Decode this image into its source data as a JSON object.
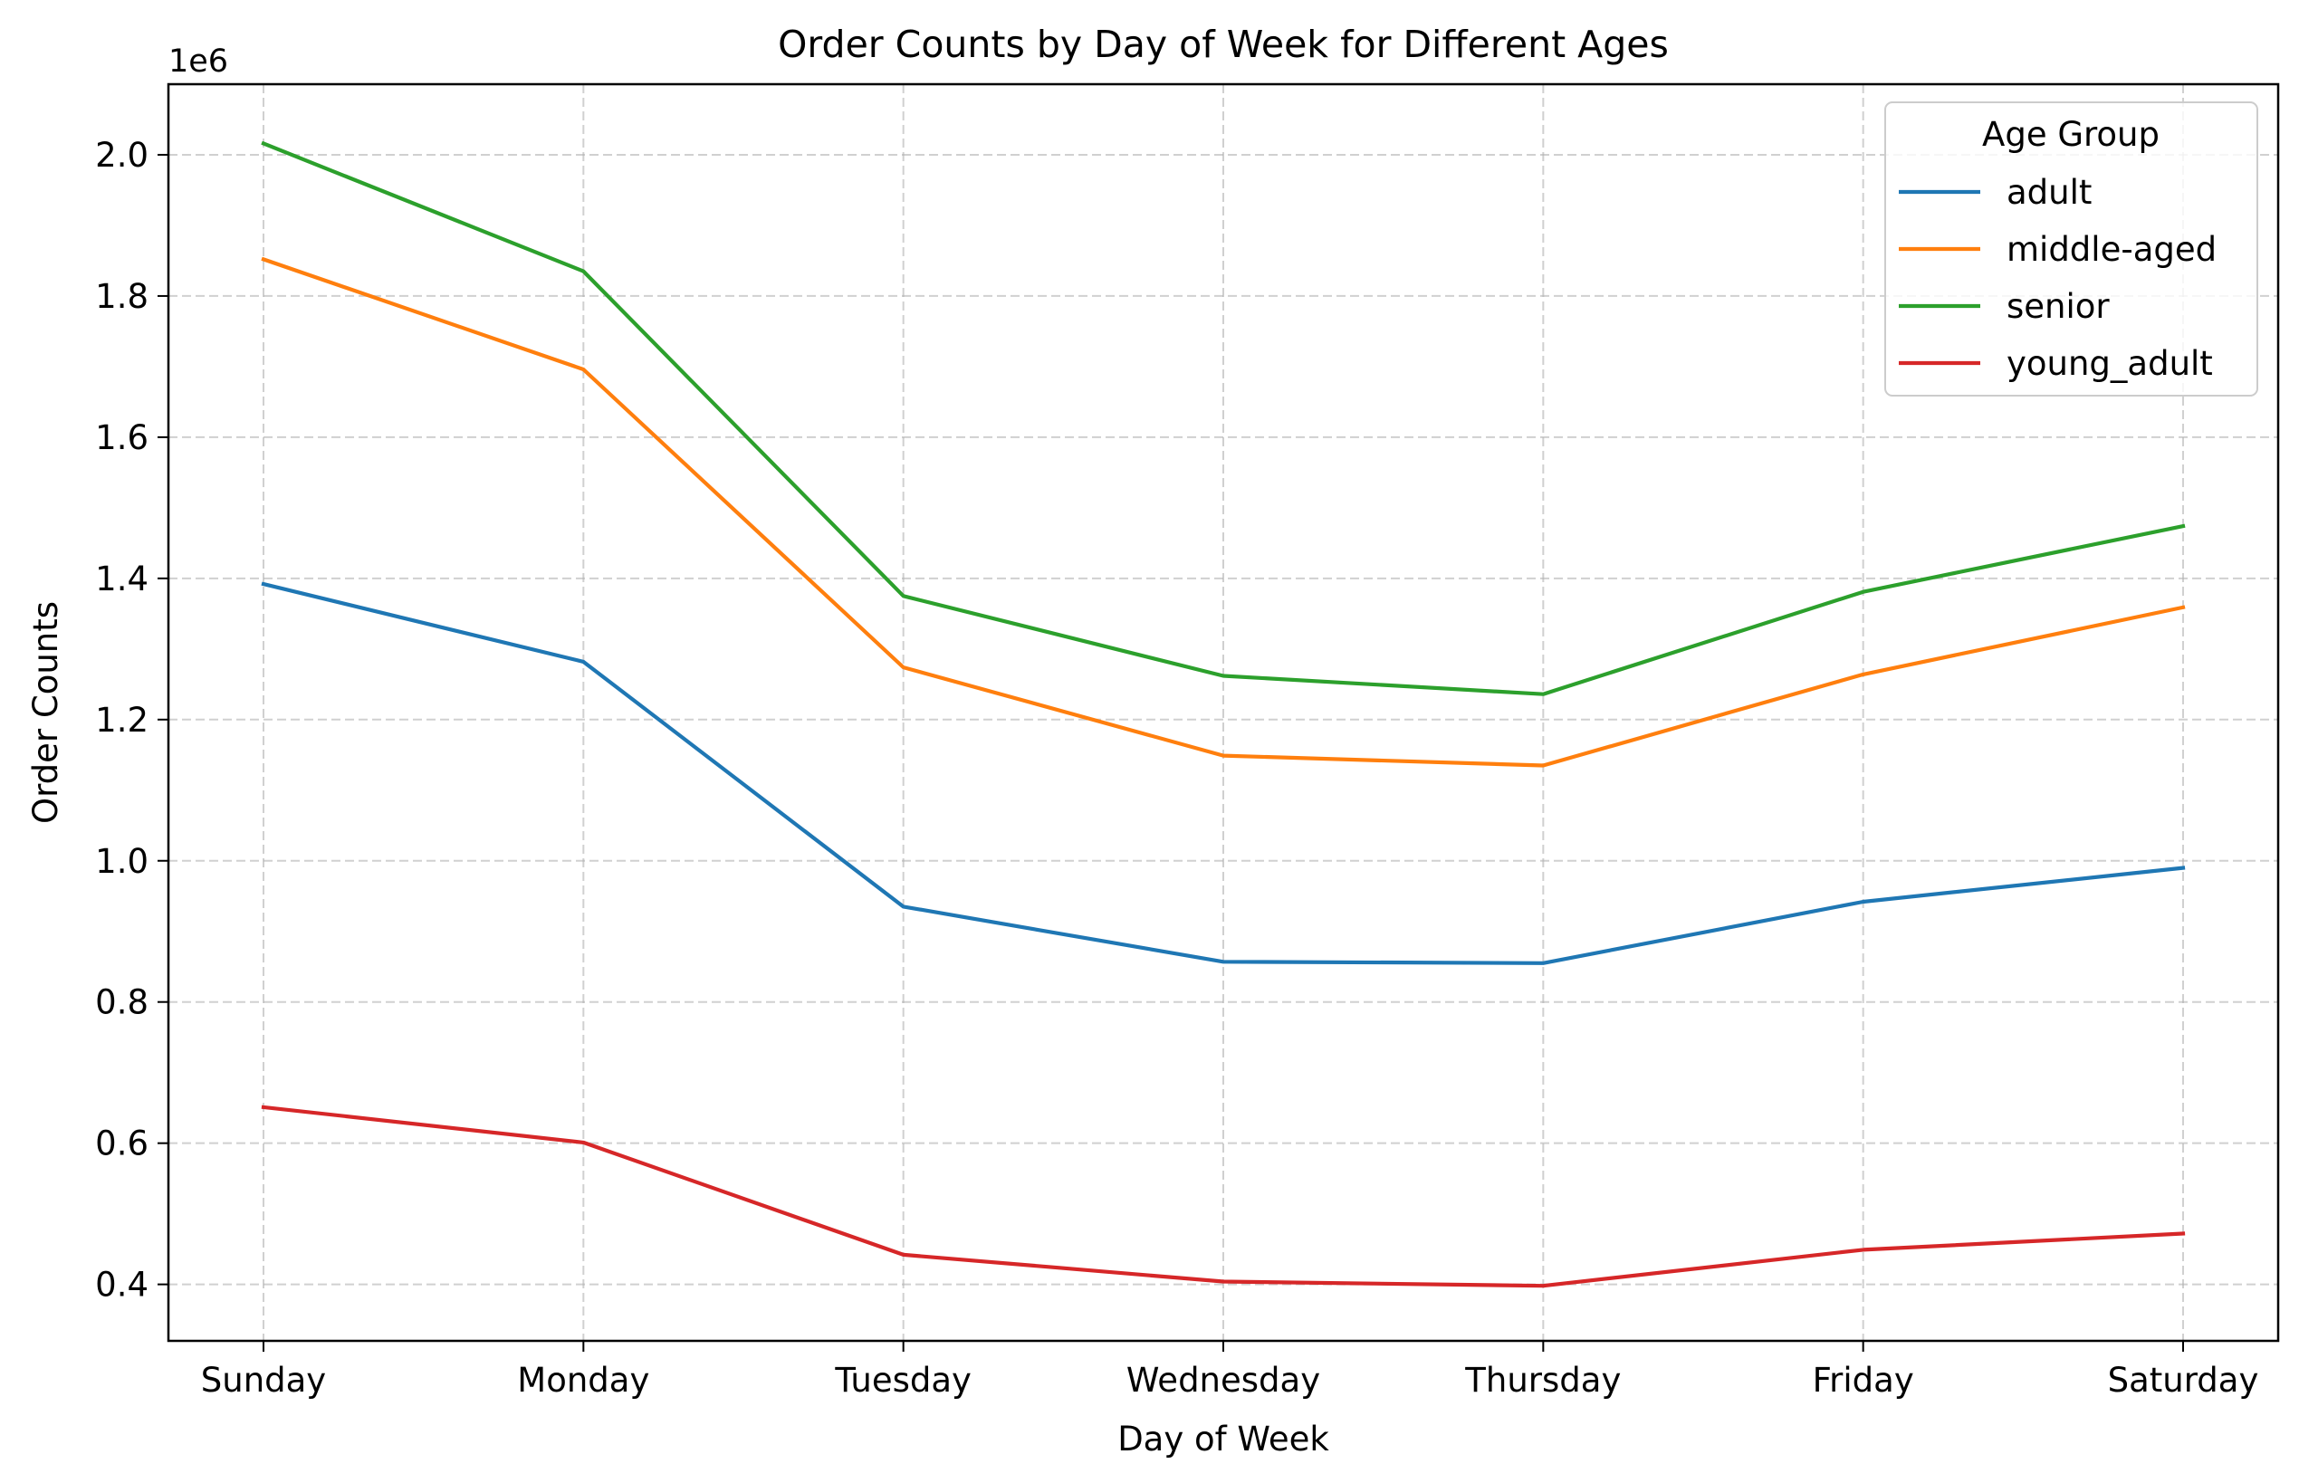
{
  "chart_data": {
    "type": "line",
    "title": "Order Counts by Day of Week for Different Ages",
    "xlabel": "Day of Week",
    "ylabel": "Order Counts",
    "y_offset_label": "1e6",
    "categories": [
      "Sunday",
      "Monday",
      "Tuesday",
      "Wednesday",
      "Thursday",
      "Friday",
      "Saturday"
    ],
    "y_ticks": [
      0.4,
      0.6,
      0.8,
      1.0,
      1.2,
      1.4,
      1.6,
      1.8,
      2.0
    ],
    "y_tick_labels": [
      "0.4",
      "0.6",
      "0.8",
      "1.0",
      "1.2",
      "1.4",
      "1.6",
      "1.8",
      "2.0"
    ],
    "ylim": [
      0.32,
      2.1
    ],
    "grid": true,
    "legend": {
      "title": "Age Group",
      "placement": "top-right"
    },
    "series": [
      {
        "name": "adult",
        "color": "#1f77b4",
        "values": [
          1.392,
          1.282,
          0.935,
          0.857,
          0.855,
          0.942,
          0.99
        ]
      },
      {
        "name": "middle-aged",
        "color": "#ff7f0e",
        "values": [
          1.852,
          1.696,
          1.274,
          1.149,
          1.135,
          1.264,
          1.359
        ]
      },
      {
        "name": "senior",
        "color": "#2ca02c",
        "values": [
          2.016,
          1.835,
          1.375,
          1.262,
          1.236,
          1.381,
          1.474
        ]
      },
      {
        "name": "young_adult",
        "color": "#d62728",
        "values": [
          0.651,
          0.601,
          0.442,
          0.404,
          0.398,
          0.449,
          0.472
        ]
      }
    ]
  }
}
